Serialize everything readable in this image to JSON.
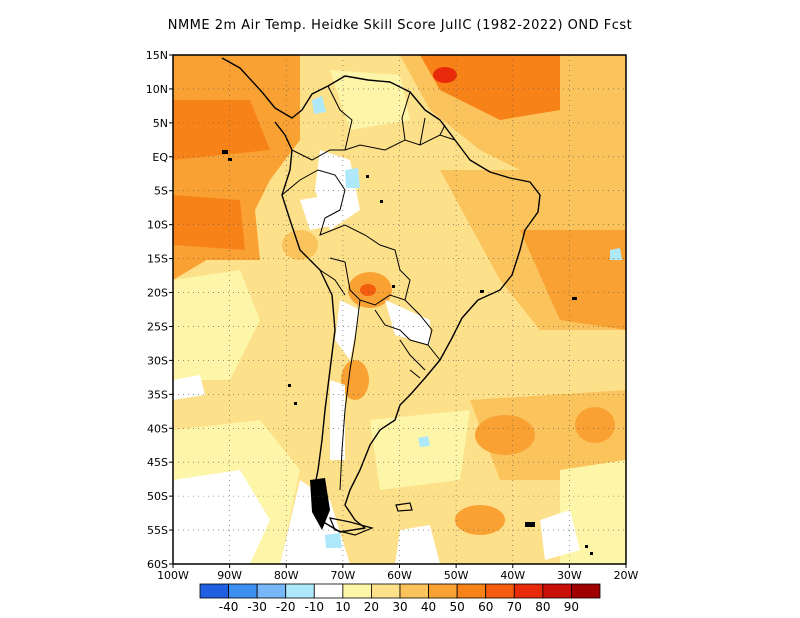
{
  "title": "NMME  2m Air Temp. Heidke Skill Score JulIC (1982-2022) OND Fcst",
  "map": {
    "lat_labels": [
      "15N",
      "10N",
      "5N",
      "EQ",
      "5S",
      "10S",
      "15S",
      "20S",
      "25S",
      "30S",
      "35S",
      "40S",
      "45S",
      "50S",
      "55S",
      "60S"
    ],
    "lon_labels": [
      "100W",
      "90W",
      "80W",
      "70W",
      "60W",
      "50W",
      "40W",
      "30W",
      "20W"
    ]
  },
  "colorbar": {
    "colors": [
      "#1f5fe0",
      "#3c8ef0",
      "#77b6f7",
      "#aee8fb",
      "#ffffff",
      "#fdf5a8",
      "#fde08a",
      "#fbc35c",
      "#f9a133",
      "#f78218",
      "#f45c0e",
      "#e82a0a",
      "#c80f08",
      "#a00000"
    ],
    "labels": [
      "-40",
      "-30",
      "-20",
      "-10",
      "10",
      "20",
      "30",
      "40",
      "50",
      "60",
      "70",
      "80",
      "90"
    ]
  }
}
